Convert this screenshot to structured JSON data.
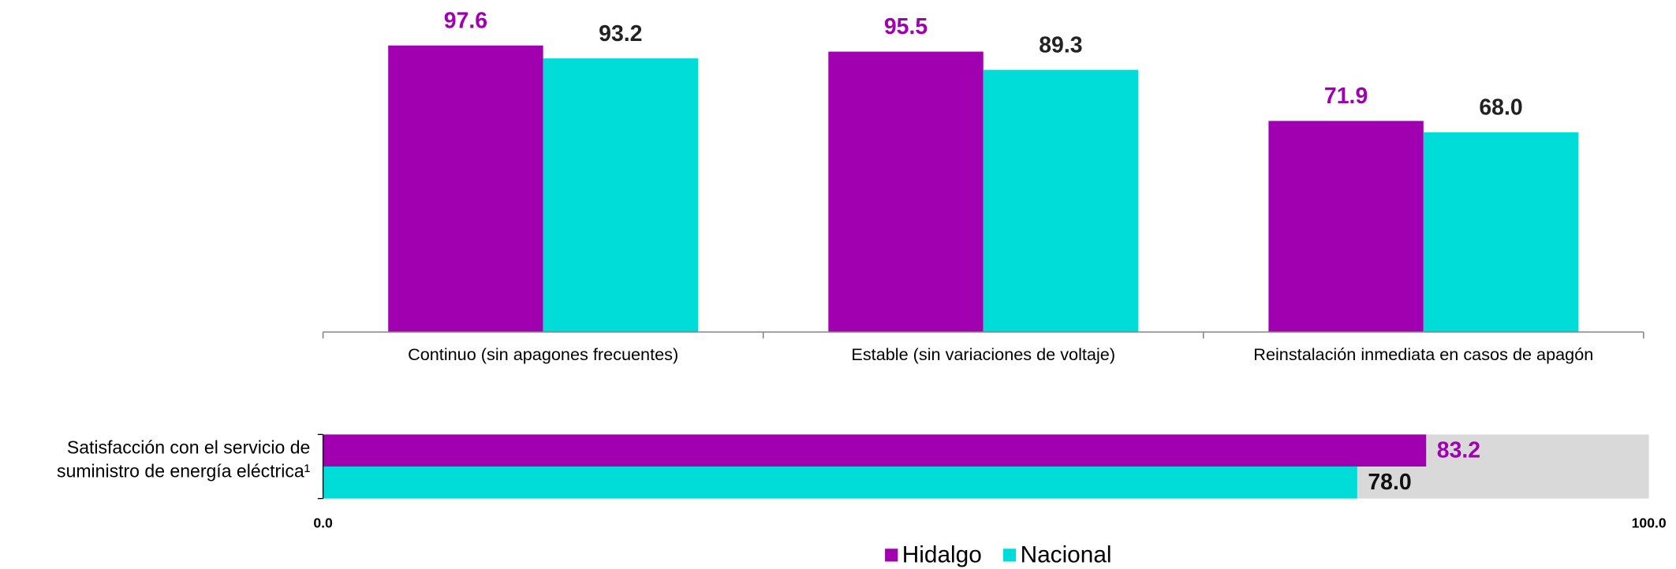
{
  "chart_data": [
    {
      "type": "bar",
      "categories": [
        "Continuo (sin apagones frecuentes)",
        "Estable (sin variaciones de voltaje)",
        "Reinstalación inmediata en casos de apagón"
      ],
      "series": [
        {
          "name": "Hidalgo",
          "color": "#a000b0",
          "values": [
            97.6,
            95.5,
            71.9
          ],
          "value_labels": [
            "97.6",
            "95.5",
            "71.9"
          ]
        },
        {
          "name": "Nacional",
          "color": "#00dcd8",
          "values": [
            93.2,
            89.3,
            68.0
          ],
          "value_labels": [
            "93.2",
            "89.3",
            "68.0"
          ]
        }
      ],
      "ylim": [
        0,
        100
      ]
    },
    {
      "type": "hbar",
      "categories": [
        "Satisfacción con el servicio de suministro de energía eléctrica¹"
      ],
      "series": [
        {
          "name": "Hidalgo",
          "color": "#a000b0",
          "values": [
            83.2
          ],
          "value_labels": [
            "83.2"
          ]
        },
        {
          "name": "Nacional",
          "color": "#00dcd8",
          "values": [
            78.0
          ],
          "value_labels": [
            "78.0"
          ]
        }
      ],
      "xlim": [
        0,
        100
      ],
      "xticks": [
        {
          "value": 0,
          "label": "0.0"
        },
        {
          "value": 100,
          "label": "100.0"
        }
      ]
    }
  ]
}
